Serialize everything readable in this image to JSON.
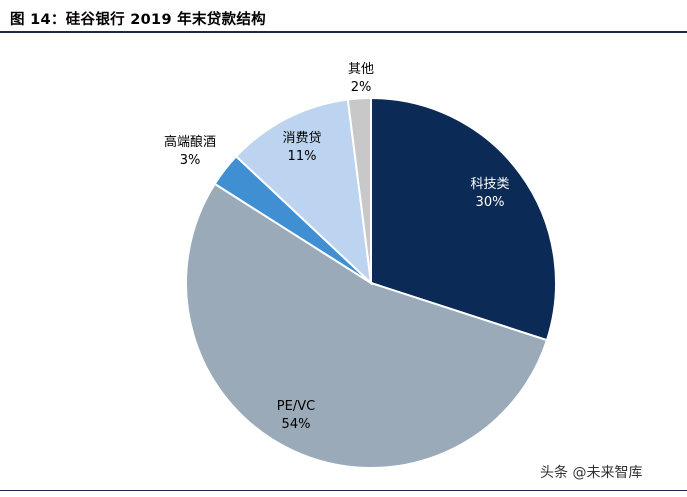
{
  "figure": {
    "title": "图 14：硅谷银行 2019 年末贷款结构"
  },
  "chart_data": {
    "type": "pie",
    "title": "",
    "start_angle_deg": 0,
    "direction": "clockwise",
    "slices": [
      {
        "label": "科技类",
        "value": 30,
        "pct_label": "30%",
        "color": "#0b2a55",
        "text_color": "#ffffff",
        "label_placement": "inside"
      },
      {
        "label": "PE/VC",
        "value": 54,
        "pct_label": "54%",
        "color": "#9aaab8",
        "text_color": "#000000",
        "label_placement": "inside"
      },
      {
        "label": "高端酿酒",
        "value": 3,
        "pct_label": "3%",
        "color": "#3f8fd2",
        "text_color": "#000000",
        "label_placement": "outside"
      },
      {
        "label": "消费贷",
        "value": 11,
        "pct_label": "11%",
        "color": "#bcd4ef",
        "text_color": "#000000",
        "label_placement": "inside"
      },
      {
        "label": "其他",
        "value": 2,
        "pct_label": "2%",
        "color": "#c8c8c8",
        "text_color": "#000000",
        "label_placement": "outside"
      }
    ]
  },
  "watermark": "头条 @未来智库"
}
